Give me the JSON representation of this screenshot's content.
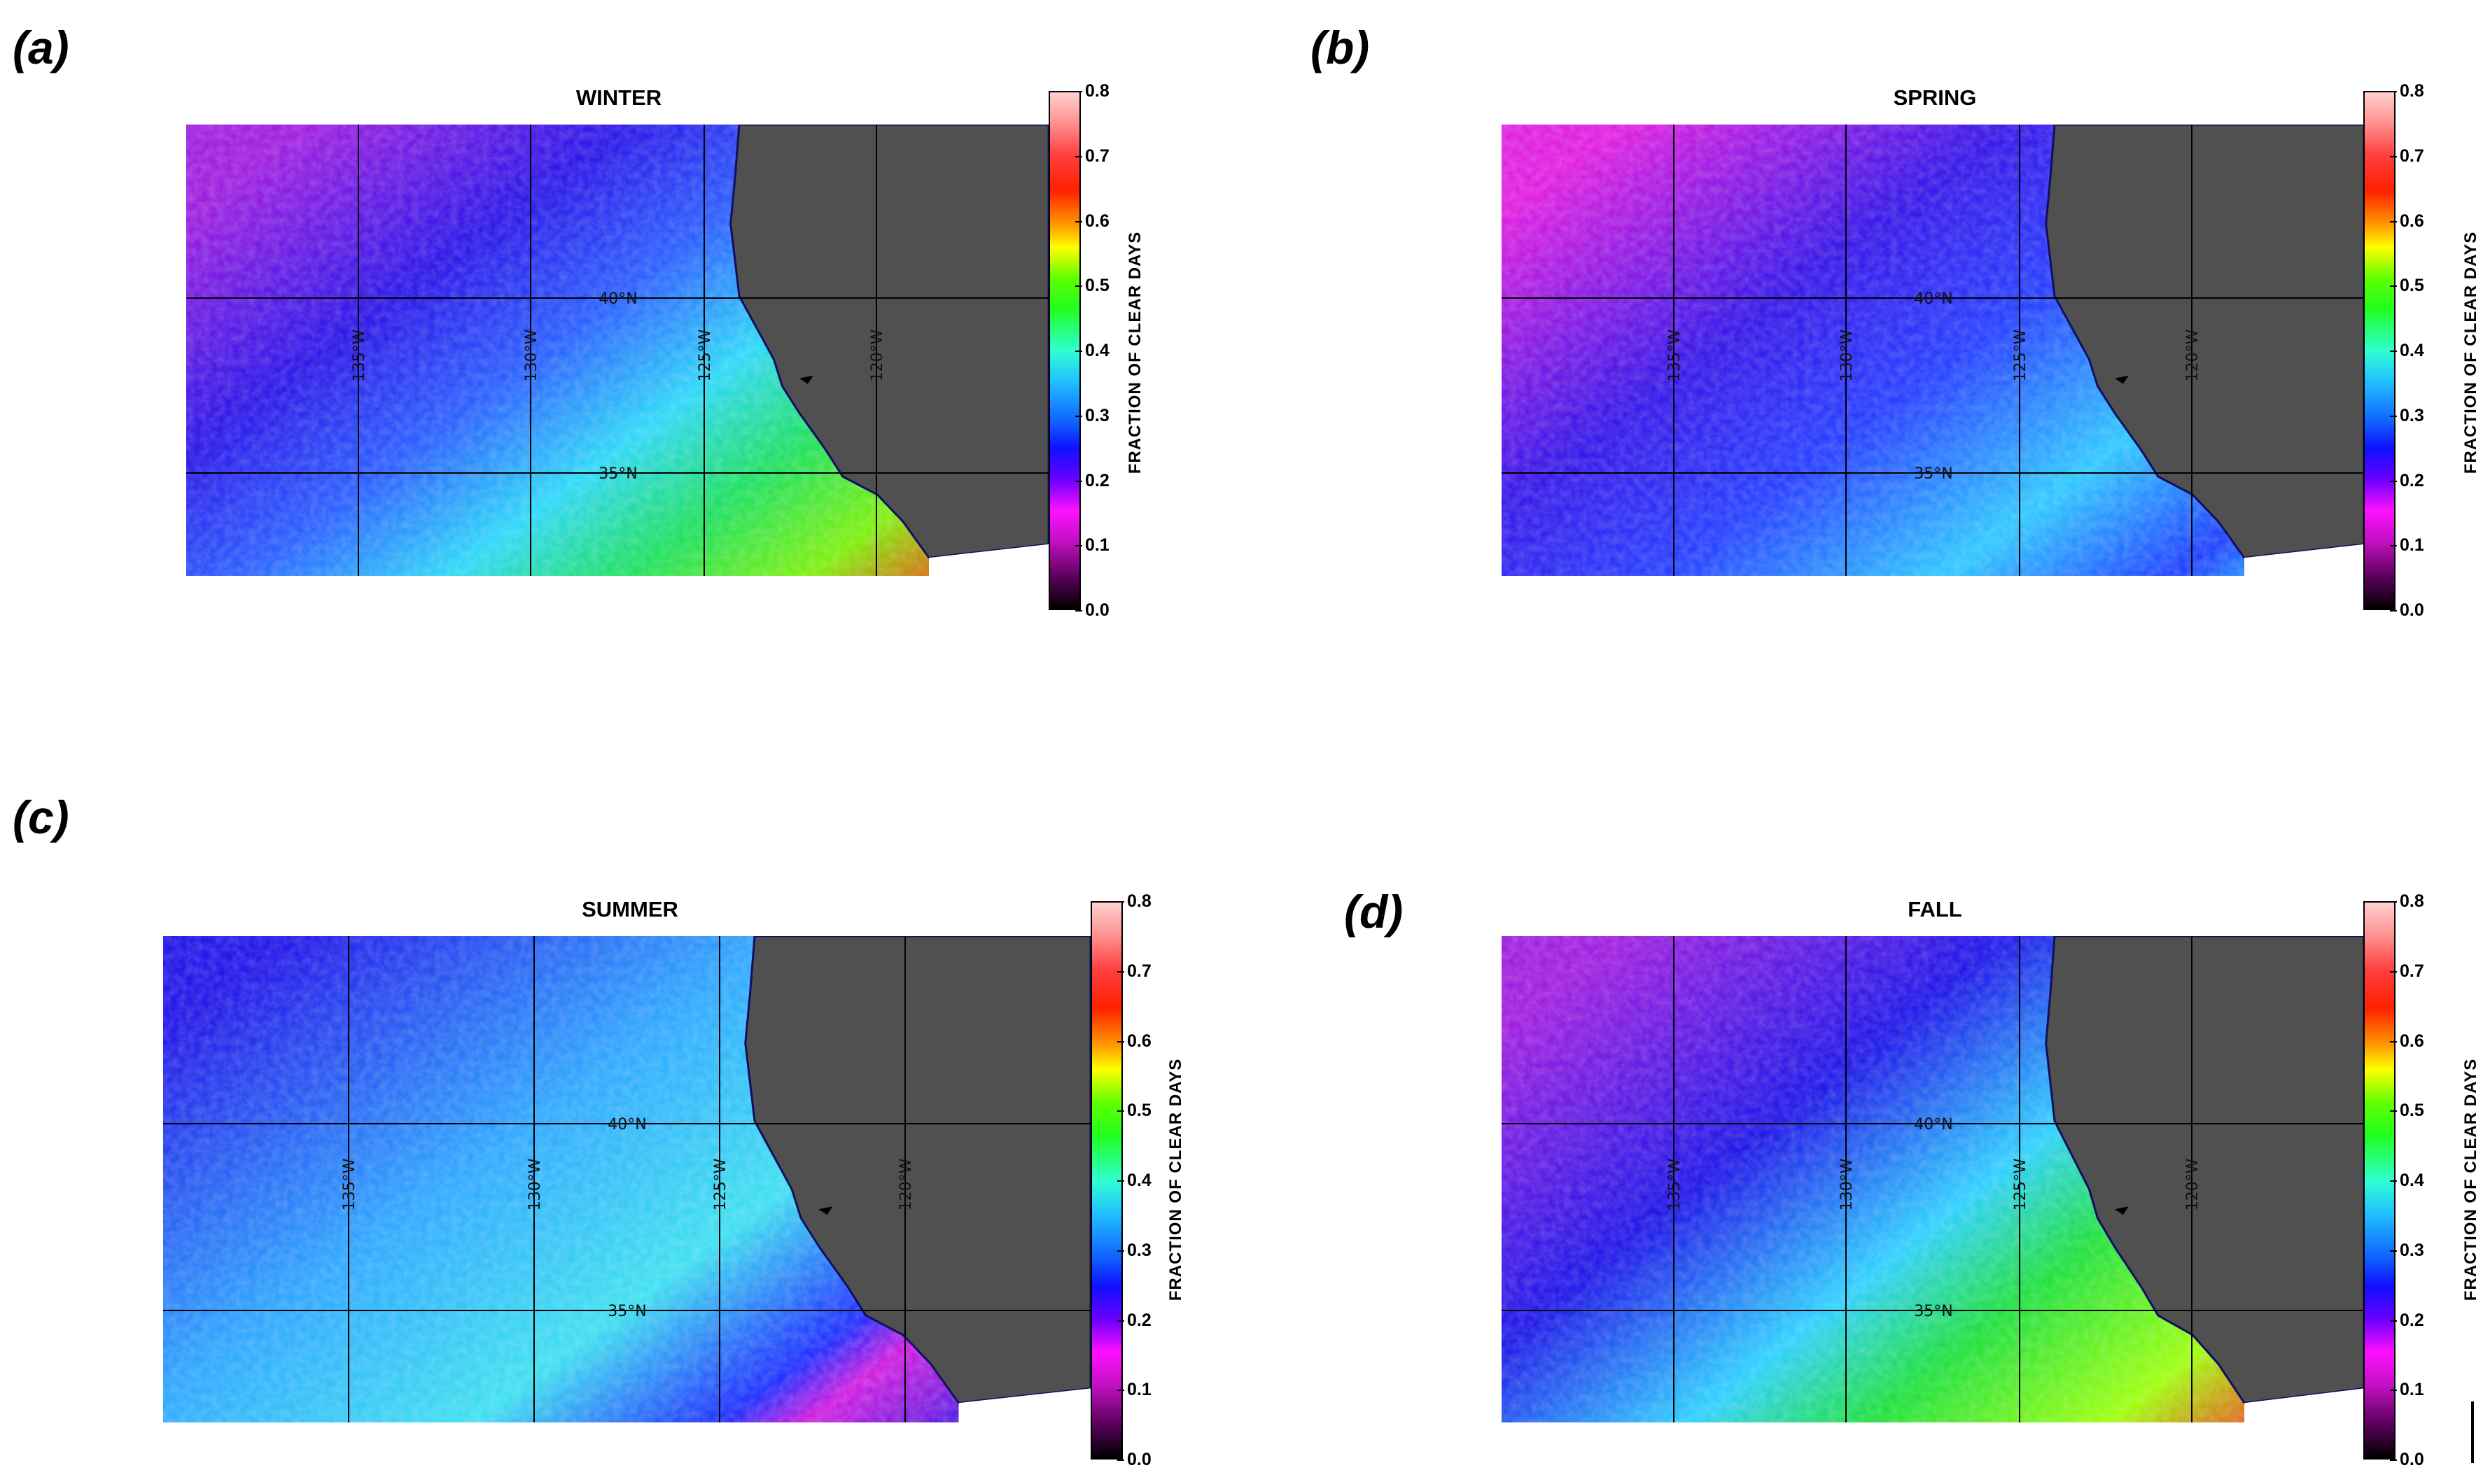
{
  "panels": [
    {
      "letter": "(a)",
      "season": "WINTER"
    },
    {
      "letter": "(b)",
      "season": "SPRING"
    },
    {
      "letter": "(c)",
      "season": "SUMMER"
    },
    {
      "letter": "(d)",
      "season": "FALL"
    }
  ],
  "colorbar": {
    "label": "FRACTION OF CLEAR DAYS",
    "ticks": [
      "0.0",
      "0.1",
      "0.2",
      "0.3",
      "0.4",
      "0.5",
      "0.6",
      "0.7",
      "0.8"
    ],
    "range": [
      0.0,
      0.8
    ]
  },
  "gridlines": {
    "lat_labels": [
      "40°N",
      "35°N"
    ],
    "lon_labels": [
      "135°W",
      "130°W",
      "125°W",
      "120°W"
    ]
  },
  "colors": {
    "land": "#505050",
    "ocean_low": "#2020e0",
    "ocean_mid": "#30e0ff",
    "ocean_high": "#20e020",
    "ocean_max": "#ff2020"
  }
}
